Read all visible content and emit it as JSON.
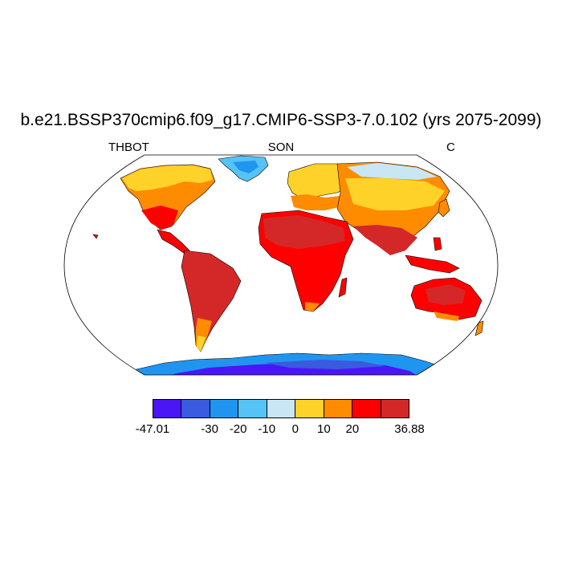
{
  "title": "b.e21.BSSP370cmip6.f09_g17.CMIP6-SSP3-7.0.102 (yrs 2075-2099)",
  "variable": "THBOT",
  "season": "SON",
  "units": "C",
  "colorbar": {
    "colors": [
      "#4a16f5",
      "#3a5ae0",
      "#1f95f0",
      "#55c3f5",
      "#c9e6f5",
      "#ffd22a",
      "#ff8c00",
      "#ff0000",
      "#d42828"
    ],
    "boundaries": [
      "-47.01",
      "",
      "-30",
      "-20",
      "-10",
      "0",
      "10",
      "20",
      "",
      "36.88"
    ]
  }
}
